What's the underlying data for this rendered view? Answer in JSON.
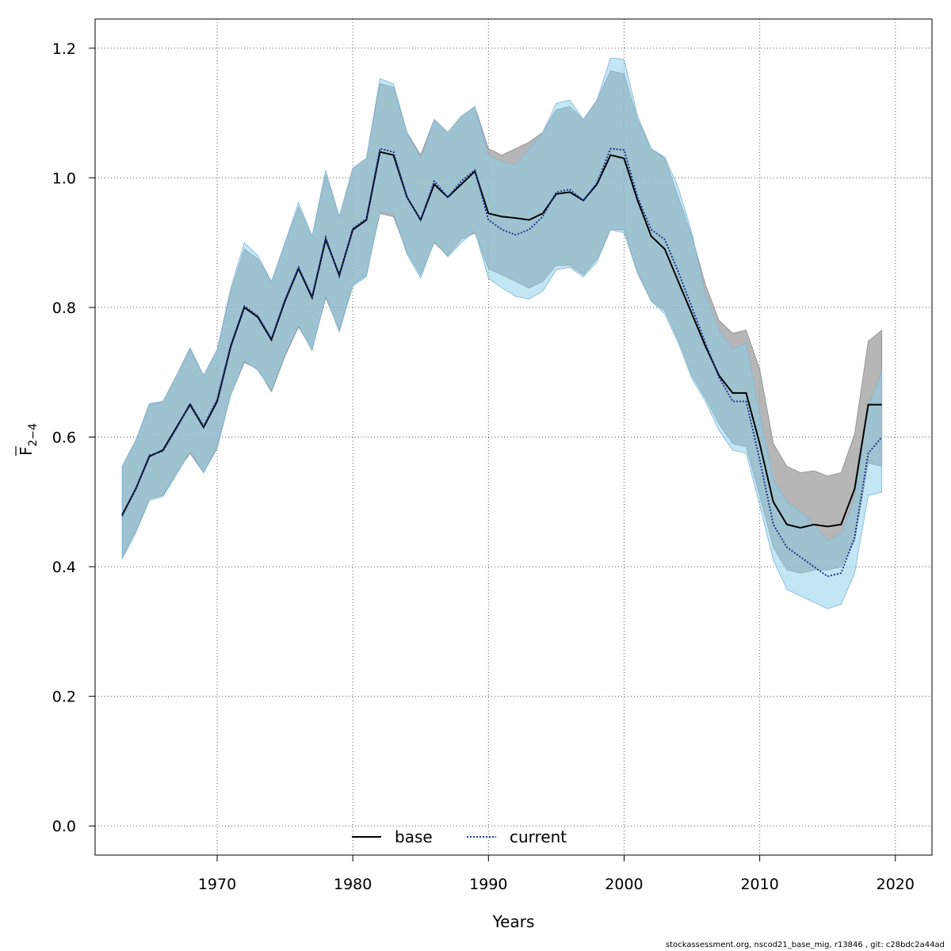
{
  "footer_text": "stockassessment.org, nscod21_base_mig, r13846 , git: c28bdc2a44ad",
  "chart_data": {
    "type": "line",
    "xlabel": "Years",
    "ylabel_main": "F",
    "ylabel_sub": "2−4",
    "xlim": [
      1961,
      2022.7
    ],
    "ylim": [
      -0.045,
      1.245
    ],
    "xticks": [
      1970,
      1980,
      1990,
      2000,
      2010,
      2020
    ],
    "yticks": [
      0.0,
      0.2,
      0.4,
      0.6,
      0.8,
      1.0,
      1.2
    ],
    "ytick_labels": [
      "0.0",
      "0.2",
      "0.4",
      "0.6",
      "0.8",
      "1.0",
      "1.2"
    ],
    "grid": true,
    "legend_placement": "bottom-center",
    "colors": {
      "base_line": "#000000",
      "base_band": "#9e9e9e",
      "current_line": "#1a3a8a",
      "current_band": "#87ceeb"
    },
    "x": [
      1963,
      1964,
      1965,
      1966,
      1967,
      1968,
      1969,
      1970,
      1971,
      1972,
      1973,
      1974,
      1975,
      1976,
      1977,
      1978,
      1979,
      1980,
      1981,
      1982,
      1983,
      1984,
      1985,
      1986,
      1987,
      1988,
      1989,
      1990,
      1991,
      1992,
      1993,
      1994,
      1995,
      1996,
      1997,
      1998,
      1999,
      2000,
      2001,
      2002,
      2003,
      2004,
      2005,
      2006,
      2007,
      2008,
      2009,
      2010,
      2011,
      2012,
      2013,
      2014,
      2015,
      2016,
      2017,
      2018,
      2019
    ],
    "series": [
      {
        "name": "base",
        "values": [
          0.48,
          0.52,
          0.57,
          0.58,
          0.615,
          0.65,
          0.615,
          0.655,
          0.74,
          0.8,
          0.785,
          0.75,
          0.81,
          0.86,
          0.815,
          0.905,
          0.85,
          0.92,
          0.935,
          1.04,
          1.035,
          0.97,
          0.935,
          0.99,
          0.97,
          0.99,
          1.01,
          0.945,
          0.94,
          0.938,
          0.935,
          0.945,
          0.975,
          0.978,
          0.965,
          0.99,
          1.035,
          1.03,
          0.965,
          0.91,
          0.89,
          0.84,
          0.79,
          0.74,
          0.695,
          0.668,
          0.668,
          0.59,
          0.5,
          0.465,
          0.46,
          0.465,
          0.462,
          0.465,
          0.52,
          0.65,
          0.65
        ],
        "lower": [
          0.415,
          0.455,
          0.505,
          0.51,
          0.545,
          0.575,
          0.545,
          0.585,
          0.665,
          0.715,
          0.705,
          0.67,
          0.725,
          0.77,
          0.735,
          0.815,
          0.765,
          0.835,
          0.85,
          0.945,
          0.94,
          0.885,
          0.85,
          0.9,
          0.88,
          0.905,
          0.915,
          0.86,
          0.85,
          0.84,
          0.83,
          0.84,
          0.865,
          0.865,
          0.85,
          0.875,
          0.92,
          0.92,
          0.855,
          0.81,
          0.795,
          0.75,
          0.695,
          0.66,
          0.62,
          0.59,
          0.585,
          0.51,
          0.43,
          0.395,
          0.39,
          0.395,
          0.395,
          0.4,
          0.44,
          0.56,
          0.555
        ],
        "upper": [
          0.555,
          0.595,
          0.65,
          0.655,
          0.695,
          0.735,
          0.695,
          0.735,
          0.825,
          0.89,
          0.875,
          0.84,
          0.9,
          0.955,
          0.91,
          1.005,
          0.94,
          1.015,
          1.03,
          1.145,
          1.14,
          1.07,
          1.035,
          1.09,
          1.07,
          1.095,
          1.11,
          1.045,
          1.035,
          1.045,
          1.055,
          1.07,
          1.105,
          1.11,
          1.09,
          1.12,
          1.165,
          1.16,
          1.09,
          1.045,
          1.03,
          0.97,
          0.91,
          0.835,
          0.78,
          0.76,
          0.765,
          0.705,
          0.59,
          0.555,
          0.545,
          0.548,
          0.54,
          0.545,
          0.605,
          0.748,
          0.765
        ]
      },
      {
        "name": "current",
        "values": [
          0.478,
          0.52,
          0.572,
          0.578,
          0.613,
          0.652,
          0.617,
          0.658,
          0.742,
          0.802,
          0.787,
          0.752,
          0.812,
          0.862,
          0.817,
          0.908,
          0.848,
          0.922,
          0.937,
          1.045,
          1.04,
          0.97,
          0.935,
          0.995,
          0.97,
          0.995,
          1.012,
          0.935,
          0.92,
          0.912,
          0.92,
          0.94,
          0.978,
          0.982,
          0.965,
          0.992,
          1.045,
          1.043,
          0.97,
          0.92,
          0.905,
          0.855,
          0.8,
          0.745,
          0.692,
          0.655,
          0.655,
          0.565,
          0.465,
          0.43,
          0.415,
          0.4,
          0.385,
          0.39,
          0.445,
          0.575,
          0.6
        ],
        "lower": [
          0.412,
          0.452,
          0.502,
          0.508,
          0.542,
          0.578,
          0.545,
          0.582,
          0.665,
          0.718,
          0.703,
          0.672,
          0.728,
          0.772,
          0.733,
          0.818,
          0.762,
          0.833,
          0.847,
          0.948,
          0.945,
          0.882,
          0.845,
          0.902,
          0.878,
          0.9,
          0.918,
          0.845,
          0.83,
          0.817,
          0.813,
          0.825,
          0.858,
          0.862,
          0.847,
          0.87,
          0.92,
          0.915,
          0.852,
          0.81,
          0.79,
          0.745,
          0.69,
          0.655,
          0.61,
          0.58,
          0.575,
          0.495,
          0.41,
          0.365,
          0.355,
          0.345,
          0.335,
          0.342,
          0.39,
          0.51,
          0.515
        ],
        "upper": [
          0.555,
          0.595,
          0.652,
          0.655,
          0.695,
          0.738,
          0.695,
          0.735,
          0.83,
          0.9,
          0.88,
          0.84,
          0.9,
          0.962,
          0.91,
          1.012,
          0.94,
          1.015,
          1.03,
          1.153,
          1.145,
          1.07,
          1.03,
          1.09,
          1.07,
          1.095,
          1.11,
          1.035,
          1.025,
          1.02,
          1.045,
          1.07,
          1.115,
          1.12,
          1.09,
          1.12,
          1.185,
          1.183,
          1.095,
          1.045,
          1.032,
          0.985,
          0.915,
          0.82,
          0.765,
          0.735,
          0.745,
          0.635,
          0.535,
          0.5,
          0.485,
          0.465,
          0.44,
          0.45,
          0.505,
          0.648,
          0.7
        ]
      }
    ]
  }
}
